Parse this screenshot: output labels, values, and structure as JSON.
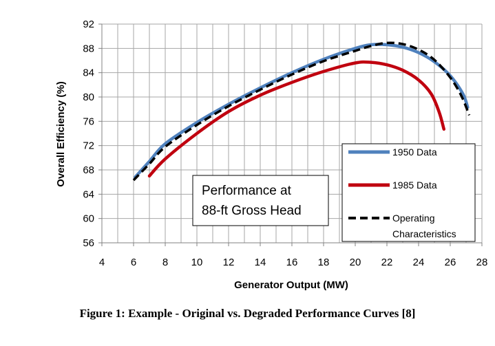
{
  "caption": "Figure 1: Example - Original vs. Degraded Performance Curves [8]",
  "chart_data": {
    "type": "line",
    "xlabel": "Generator Output (MW)",
    "ylabel": "Overall Efficiency (%)",
    "xlim": [
      4,
      28
    ],
    "ylim": [
      56,
      92
    ],
    "xticks": [
      4,
      6,
      8,
      10,
      12,
      14,
      16,
      18,
      20,
      22,
      24,
      26,
      28
    ],
    "yticks": [
      56,
      60,
      64,
      68,
      72,
      76,
      80,
      84,
      88,
      92
    ],
    "grid": true,
    "legend_position": "bottom-right",
    "annotation": [
      "Performance at",
      "88-ft Gross Head"
    ],
    "series": [
      {
        "name": "1950 Data",
        "color": "#4f81bd",
        "style": "solid",
        "points": [
          [
            6.1,
            66.8
          ],
          [
            7,
            69.4
          ],
          [
            8,
            72.3
          ],
          [
            10,
            75.8
          ],
          [
            12,
            78.8
          ],
          [
            14,
            81.5
          ],
          [
            16,
            84.0
          ],
          [
            18,
            86.2
          ],
          [
            20,
            88.0
          ],
          [
            21,
            88.6
          ],
          [
            22,
            88.6
          ],
          [
            23,
            88.2
          ],
          [
            24,
            87.3
          ],
          [
            25,
            85.8
          ],
          [
            26,
            83.5
          ],
          [
            26.8,
            80.5
          ],
          [
            27.1,
            78.3
          ]
        ]
      },
      {
        "name": "1985 Data",
        "color": "#c0000f",
        "style": "solid",
        "points": [
          [
            7,
            67.0
          ],
          [
            8,
            69.8
          ],
          [
            10,
            74.0
          ],
          [
            12,
            77.6
          ],
          [
            14,
            80.3
          ],
          [
            16,
            82.4
          ],
          [
            18,
            84.2
          ],
          [
            20,
            85.6
          ],
          [
            21,
            85.7
          ],
          [
            22,
            85.3
          ],
          [
            23,
            84.4
          ],
          [
            24,
            82.8
          ],
          [
            24.8,
            80.5
          ],
          [
            25.3,
            77.5
          ],
          [
            25.6,
            74.7
          ]
        ]
      },
      {
        "name": "Operating Characteristics",
        "color": "#000000",
        "style": "dashed",
        "points": [
          [
            6,
            66.3
          ],
          [
            7,
            69.0
          ],
          [
            8,
            71.8
          ],
          [
            10,
            75.4
          ],
          [
            12,
            78.5
          ],
          [
            14,
            81.2
          ],
          [
            16,
            83.7
          ],
          [
            18,
            85.9
          ],
          [
            20,
            87.6
          ],
          [
            21,
            88.4
          ],
          [
            22,
            88.9
          ],
          [
            23,
            88.7
          ],
          [
            24,
            87.8
          ],
          [
            25,
            86.1
          ],
          [
            26,
            83.2
          ],
          [
            26.7,
            80.2
          ],
          [
            27.2,
            77.0
          ]
        ]
      }
    ]
  }
}
